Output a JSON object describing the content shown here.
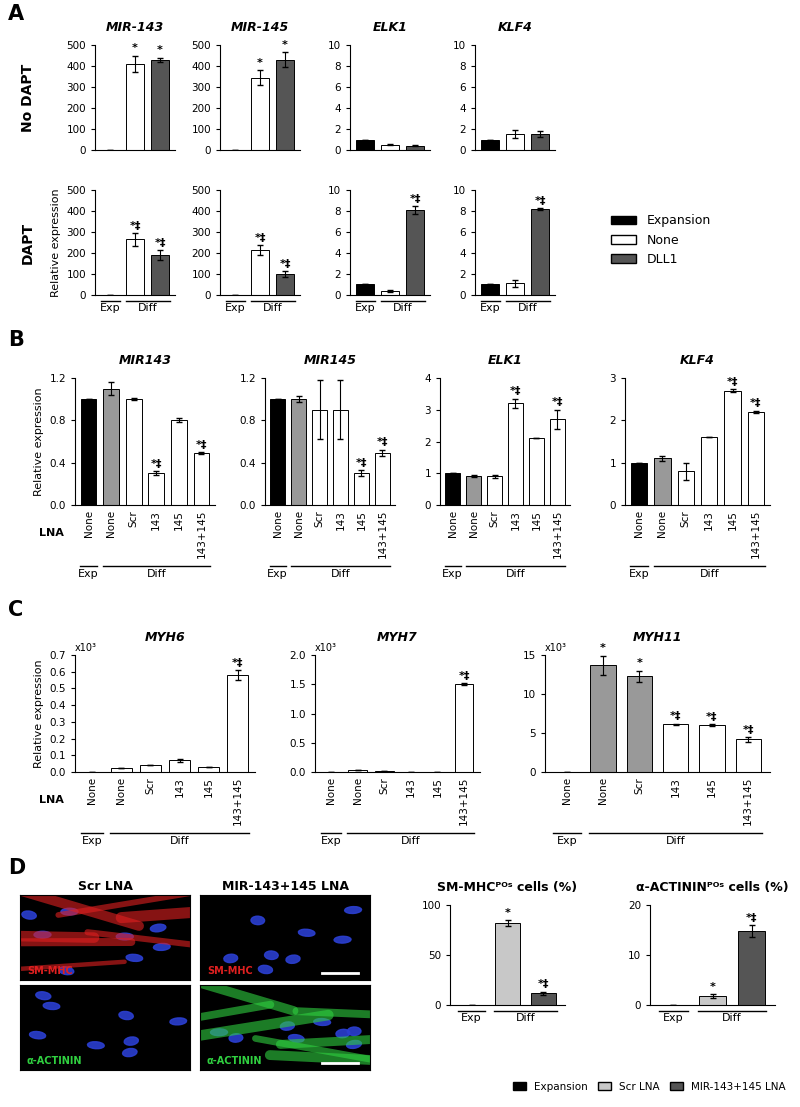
{
  "panel_labels": [
    "A",
    "B",
    "C",
    "D"
  ],
  "row_labels": [
    "No DAPT",
    "DAPT"
  ],
  "legends": [
    {
      "panel": "A",
      "entries": [
        {
          "name": "Expansion",
          "color": "#000000"
        },
        {
          "name": "None",
          "color": "#ffffff"
        },
        {
          "name": "DLL1",
          "color": "#555555"
        }
      ]
    },
    {
      "panel": "D",
      "entries": [
        {
          "name": "Expansion",
          "color": "#000000"
        },
        {
          "name": "Scr LNA",
          "color": "#c8c8c8"
        },
        {
          "name": "MIR-143+145 LNA",
          "color": "#555555"
        }
      ]
    }
  ],
  "images": {
    "column_titles": [
      "Scr LNA",
      "MIR-143+145 LNA"
    ],
    "row_stains": [
      {
        "label": "SM-MHC",
        "color": "#e02020"
      },
      {
        "label": "α-ACTININ",
        "color": "#30d040"
      }
    ]
  },
  "chart_data": [
    {
      "type": "bar",
      "title": "MIR-143",
      "categories": [
        null,
        null,
        null
      ],
      "values": [
        1,
        410,
        430
      ],
      "errors": [
        0,
        40,
        10
      ],
      "colors": [
        "#000000",
        "#ffffff",
        "#555555"
      ],
      "annotations": [
        null,
        "*",
        "*"
      ],
      "ylim": [
        0,
        500
      ],
      "yticks": [
        0,
        100,
        200,
        300,
        400,
        500
      ]
    },
    {
      "type": "bar",
      "title": "MIR-145",
      "categories": [
        null,
        null,
        null
      ],
      "values": [
        1,
        345,
        430
      ],
      "errors": [
        0,
        35,
        35
      ],
      "colors": [
        "#000000",
        "#ffffff",
        "#555555"
      ],
      "annotations": [
        null,
        "*",
        "*"
      ],
      "ylim": [
        0,
        500
      ],
      "yticks": [
        0,
        100,
        200,
        300,
        400,
        500
      ]
    },
    {
      "type": "bar",
      "title": "ELK1",
      "categories": [
        null,
        null,
        null
      ],
      "values": [
        1.0,
        0.5,
        0.4
      ],
      "errors": [
        0,
        0.05,
        0.05
      ],
      "colors": [
        "#000000",
        "#ffffff",
        "#555555"
      ],
      "annotations": [
        null,
        null,
        null
      ],
      "ylim": [
        0,
        10
      ],
      "yticks": [
        0,
        2,
        4,
        6,
        8,
        10
      ]
    },
    {
      "type": "bar",
      "title": "KLF4",
      "categories": [
        null,
        null,
        null
      ],
      "values": [
        1.0,
        1.5,
        1.5
      ],
      "errors": [
        0,
        0.4,
        0.3
      ],
      "colors": [
        "#000000",
        "#ffffff",
        "#555555"
      ],
      "annotations": [
        null,
        null,
        null
      ],
      "ylim": [
        0,
        10
      ],
      "yticks": [
        0,
        2,
        4,
        6,
        8,
        10
      ]
    },
    {
      "type": "bar",
      "ylabel": "Relative expression",
      "categories": [
        null,
        null,
        null
      ],
      "values": [
        1,
        265,
        190
      ],
      "errors": [
        0,
        30,
        25
      ],
      "colors": [
        "#000000",
        "#ffffff",
        "#555555"
      ],
      "annotations": [
        null,
        "*‡",
        "*‡"
      ],
      "groups": [
        {
          "label": "Exp",
          "first": 0,
          "last": 0
        },
        {
          "label": "Diff",
          "first": 1,
          "last": 2
        }
      ],
      "ylim": [
        0,
        500
      ],
      "yticks": [
        0,
        100,
        200,
        300,
        400,
        500
      ]
    },
    {
      "type": "bar",
      "categories": [
        null,
        null,
        null
      ],
      "values": [
        1,
        215,
        100
      ],
      "errors": [
        0,
        25,
        15
      ],
      "colors": [
        "#000000",
        "#ffffff",
        "#555555"
      ],
      "annotations": [
        null,
        "*‡",
        "*‡"
      ],
      "groups": [
        {
          "label": "Exp",
          "first": 0,
          "last": 0
        },
        {
          "label": "Diff",
          "first": 1,
          "last": 2
        }
      ],
      "ylim": [
        0,
        500
      ],
      "yticks": [
        0,
        100,
        200,
        300,
        400,
        500
      ]
    },
    {
      "type": "bar",
      "categories": [
        null,
        null,
        null
      ],
      "values": [
        1.0,
        0.4,
        8.1
      ],
      "errors": [
        0,
        0.1,
        0.4
      ],
      "colors": [
        "#000000",
        "#ffffff",
        "#555555"
      ],
      "annotations": [
        null,
        null,
        "*‡"
      ],
      "groups": [
        {
          "label": "Exp",
          "first": 0,
          "last": 0
        },
        {
          "label": "Diff",
          "first": 1,
          "last": 2
        }
      ],
      "ylim": [
        0,
        10
      ],
      "yticks": [
        0,
        2,
        4,
        6,
        8,
        10
      ]
    },
    {
      "type": "bar",
      "categories": [
        null,
        null,
        null
      ],
      "values": [
        1.0,
        1.1,
        8.2
      ],
      "errors": [
        0,
        0.3,
        0.1
      ],
      "colors": [
        "#000000",
        "#ffffff",
        "#555555"
      ],
      "annotations": [
        null,
        null,
        "*‡"
      ],
      "groups": [
        {
          "label": "Exp",
          "first": 0,
          "last": 0
        },
        {
          "label": "Diff",
          "first": 1,
          "last": 2
        }
      ],
      "ylim": [
        0,
        10
      ],
      "yticks": [
        0,
        2,
        4,
        6,
        8,
        10
      ]
    },
    {
      "type": "bar",
      "title": "MIR143",
      "ylabel": "Relative expression",
      "xlabel": "LNA",
      "categories": [
        "None",
        "None",
        "Scr",
        "143",
        "145",
        "143+145"
      ],
      "values": [
        1.0,
        1.1,
        1.0,
        0.3,
        0.8,
        0.49
      ],
      "errors": [
        0,
        0.06,
        0.01,
        0.02,
        0.02,
        0.01
      ],
      "colors": [
        "#000000",
        "#999999",
        "#ffffff",
        "#ffffff",
        "#ffffff",
        "#ffffff"
      ],
      "annotations": [
        null,
        null,
        null,
        "*‡",
        null,
        "*‡"
      ],
      "groups": [
        {
          "label": "Exp",
          "first": 0,
          "last": 0
        },
        {
          "label": "Diff",
          "first": 1,
          "last": 5
        }
      ],
      "ylim": [
        0,
        1.2
      ],
      "yticks": [
        {
          "value": 0,
          "label": "0.0"
        },
        {
          "value": 0.4,
          "label": "0.4"
        },
        {
          "value": 0.8,
          "label": "0.8"
        },
        {
          "value": 1.2,
          "label": "1.2"
        }
      ]
    },
    {
      "type": "bar",
      "title": "MIR145",
      "categories": [
        "None",
        "None",
        "Scr",
        "143",
        "145",
        "143+145"
      ],
      "values": [
        1.0,
        1.0,
        0.9,
        0.9,
        0.3,
        0.49
      ],
      "errors": [
        0,
        0.03,
        0.28,
        0.28,
        0.03,
        0.03
      ],
      "colors": [
        "#000000",
        "#999999",
        "#ffffff",
        "#ffffff",
        "#ffffff",
        "#ffffff"
      ],
      "annotations": [
        null,
        null,
        null,
        null,
        "*‡",
        "*‡"
      ],
      "groups": [
        {
          "label": "Exp",
          "first": 0,
          "last": 0
        },
        {
          "label": "Diff",
          "first": 1,
          "last": 5
        }
      ],
      "ylim": [
        0,
        1.2
      ],
      "yticks": [
        {
          "value": 0,
          "label": "0.0"
        },
        {
          "value": 0.4,
          "label": "0.4"
        },
        {
          "value": 0.8,
          "label": "0.8"
        },
        {
          "value": 1.2,
          "label": "1.2"
        }
      ]
    },
    {
      "type": "bar",
      "title": "ELK1",
      "categories": [
        "None",
        "None",
        "Scr",
        "143",
        "145",
        "143+145"
      ],
      "values": [
        1.0,
        0.9,
        0.9,
        3.2,
        2.1,
        2.7
      ],
      "errors": [
        0,
        0.03,
        0.05,
        0.15,
        0,
        0.3
      ],
      "colors": [
        "#000000",
        "#999999",
        "#ffffff",
        "#ffffff",
        "#ffffff",
        "#ffffff"
      ],
      "annotations": [
        null,
        null,
        null,
        "*‡",
        null,
        "*‡"
      ],
      "groups": [
        {
          "label": "Exp",
          "first": 0,
          "last": 0
        },
        {
          "label": "Diff",
          "first": 1,
          "last": 5
        }
      ],
      "ylim": [
        0,
        4
      ],
      "yticks": [
        0,
        1,
        2,
        3,
        4
      ]
    },
    {
      "type": "bar",
      "title": "KLF4",
      "categories": [
        "None",
        "None",
        "Scr",
        "143",
        "145",
        "143+145"
      ],
      "values": [
        1.0,
        1.1,
        0.8,
        1.6,
        2.7,
        2.2
      ],
      "errors": [
        0,
        0.05,
        0.2,
        0,
        0.03,
        0.03
      ],
      "colors": [
        "#000000",
        "#999999",
        "#ffffff",
        "#ffffff",
        "#ffffff",
        "#ffffff"
      ],
      "annotations": [
        null,
        null,
        null,
        null,
        "*‡",
        "*‡"
      ],
      "groups": [
        {
          "label": "Exp",
          "first": 0,
          "last": 0
        },
        {
          "label": "Diff",
          "first": 1,
          "last": 5
        }
      ],
      "ylim": [
        0,
        3
      ],
      "yticks": [
        0,
        1,
        2,
        3
      ]
    },
    {
      "type": "bar",
      "title": "MYH6",
      "ylabel": "Relative expression",
      "y_unit_label": "x10³",
      "xlabel": "LNA",
      "categories": [
        "None",
        "None",
        "Scr",
        "143",
        "145",
        "143+145"
      ],
      "values": [
        0,
        0.025,
        0.04,
        0.07,
        0.03,
        0.58
      ],
      "errors": [
        0,
        0,
        0,
        0.01,
        0,
        0.03
      ],
      "colors": [
        "#000000",
        "#ffffff",
        "#ffffff",
        "#ffffff",
        "#ffffff",
        "#ffffff"
      ],
      "annotations": [
        null,
        null,
        null,
        null,
        null,
        "*‡"
      ],
      "groups": [
        {
          "label": "Exp",
          "first": 0,
          "last": 0
        },
        {
          "label": "Diff",
          "first": 1,
          "last": 5
        }
      ],
      "ylim": [
        0,
        0.7
      ],
      "yticks": [
        {
          "value": 0,
          "label": "0.0"
        },
        {
          "value": 0.1,
          "label": "0.1"
        },
        {
          "value": 0.2,
          "label": "0.2"
        },
        {
          "value": 0.3,
          "label": "0.3"
        },
        {
          "value": 0.4,
          "label": "0.4"
        },
        {
          "value": 0.5,
          "label": "0.5"
        },
        {
          "value": 0.6,
          "label": "0.6"
        },
        {
          "value": 0.7,
          "label": "0.7"
        }
      ]
    },
    {
      "type": "bar",
      "title": "MYH7",
      "y_unit_label": "x10³",
      "categories": [
        "None",
        "None",
        "Scr",
        "143",
        "145",
        "143+145"
      ],
      "values": [
        0,
        0.03,
        0.02,
        0,
        0,
        1.5
      ],
      "errors": [
        0,
        0,
        0,
        0,
        0,
        0.02
      ],
      "colors": [
        "#000000",
        "#ffffff",
        "#ffffff",
        "#ffffff",
        "#ffffff",
        "#ffffff"
      ],
      "annotations": [
        null,
        null,
        null,
        null,
        null,
        "*‡"
      ],
      "groups": [
        {
          "label": "Exp",
          "first": 0,
          "last": 0
        },
        {
          "label": "Diff",
          "first": 1,
          "last": 5
        }
      ],
      "ylim": [
        0,
        2
      ],
      "yticks": [
        {
          "value": 0,
          "label": "0.0"
        },
        {
          "value": 0.5,
          "label": "0.5"
        },
        {
          "value": 1,
          "label": "1.0"
        },
        {
          "value": 1.5,
          "label": "1.5"
        },
        {
          "value": 2,
          "label": "2.0"
        }
      ]
    },
    {
      "type": "bar",
      "title": "MYH11",
      "y_unit_label": "x10³",
      "categories": [
        "None",
        "None",
        "Scr",
        "143",
        "145",
        "143+145"
      ],
      "values": [
        0,
        13.7,
        12.3,
        6.1,
        6.0,
        4.2
      ],
      "errors": [
        0,
        1.2,
        0.7,
        0.1,
        0.1,
        0.3
      ],
      "colors": [
        "#000000",
        "#999999",
        "#999999",
        "#ffffff",
        "#ffffff",
        "#ffffff"
      ],
      "annotations": [
        null,
        "*",
        "*",
        "*‡",
        "*‡",
        "*‡"
      ],
      "groups": [
        {
          "label": "Exp",
          "first": 0,
          "last": 0
        },
        {
          "label": "Diff",
          "first": 1,
          "last": 5
        }
      ],
      "ylim": [
        0,
        15
      ],
      "yticks": [
        0,
        5,
        10,
        15
      ]
    },
    {
      "type": "bar",
      "title": "SM-MHCᴾᴼˢ cells (%)",
      "categories": [
        null,
        null,
        null
      ],
      "values": [
        0,
        82,
        12
      ],
      "errors": [
        0,
        3,
        1.5
      ],
      "colors": [
        "#000000",
        "#c8c8c8",
        "#555555"
      ],
      "annotations": [
        null,
        "*",
        "*‡"
      ],
      "groups": [
        {
          "label": "Exp",
          "first": 0,
          "last": 0
        },
        {
          "label": "Diff",
          "first": 1,
          "last": 2
        }
      ],
      "ylim": [
        0,
        100
      ],
      "yticks": [
        0,
        50,
        100
      ]
    },
    {
      "type": "bar",
      "title": "α-ACTININᴾᴼˢ cells (%)",
      "categories": [
        null,
        null,
        null
      ],
      "values": [
        0,
        1.8,
        14.8
      ],
      "errors": [
        0,
        0.4,
        1.2
      ],
      "colors": [
        "#000000",
        "#c8c8c8",
        "#555555"
      ],
      "annotations": [
        null,
        "*",
        "*‡"
      ],
      "groups": [
        {
          "label": "Exp",
          "first": 0,
          "last": 0
        },
        {
          "label": "Diff",
          "first": 1,
          "last": 2
        }
      ],
      "ylim": [
        0,
        20
      ],
      "yticks": [
        0,
        10,
        20
      ]
    }
  ]
}
